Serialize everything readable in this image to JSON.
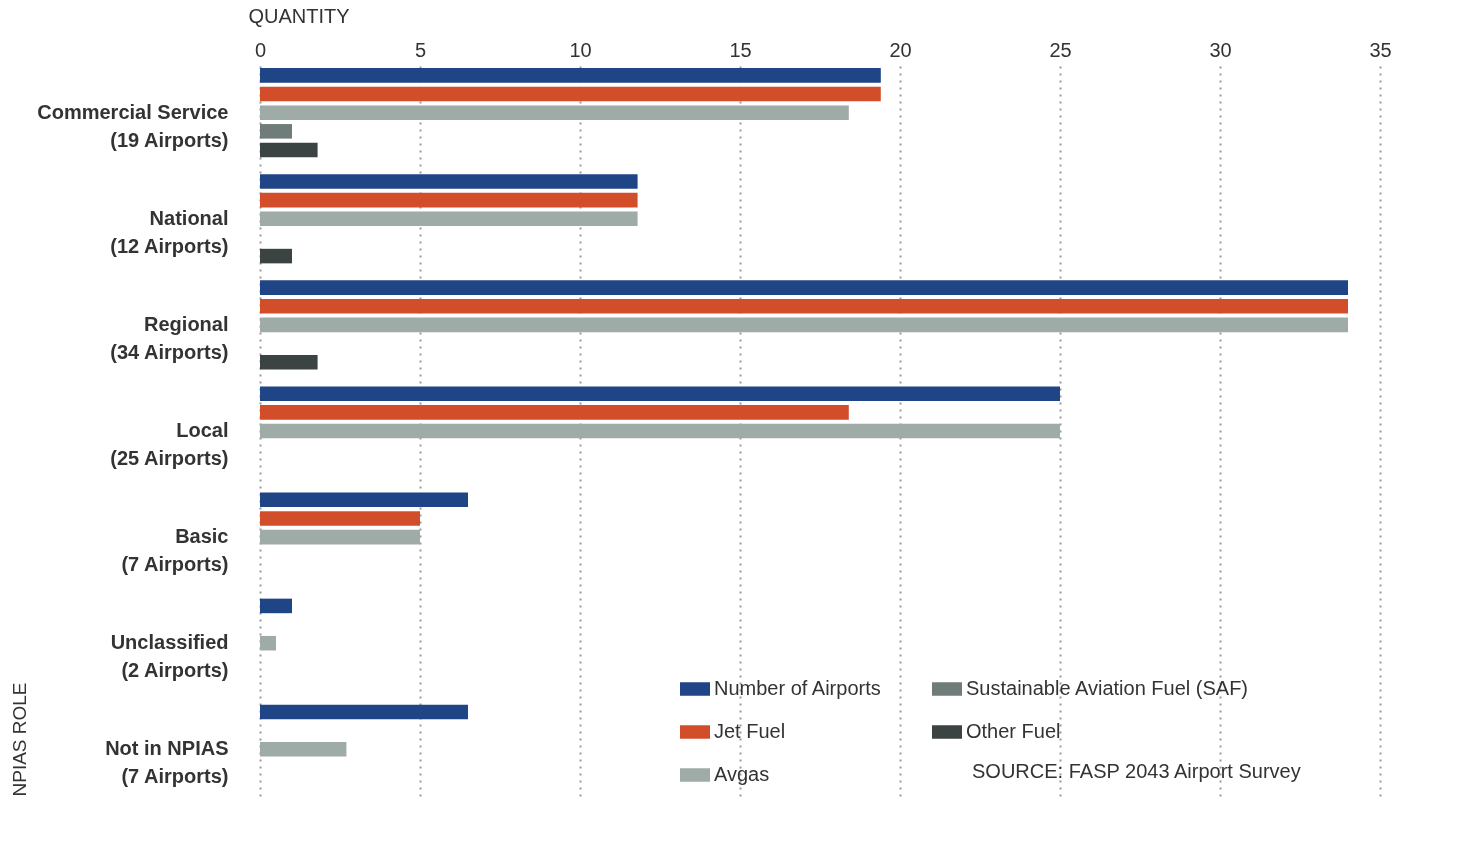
{
  "chart_data": {
    "type": "bar",
    "orientation": "horizontal",
    "xlabel": "QUANTITY",
    "ylabel": "NPIAS ROLE",
    "categories": [
      "Commercial Service (19 Airports)",
      "National (12 Airports)",
      "Regional (34 Airports)",
      "Local (25 Airports)",
      "Basic (7 Airports)",
      "Unclassified (2 Airports)",
      "Not in NPIAS (7 Airports)"
    ],
    "series": [
      {
        "name": "Number of Airports",
        "color": "#1f4587",
        "values": [
          19.4,
          11.8,
          34,
          25,
          6.5,
          1,
          6.5
        ]
      },
      {
        "name": "Jet Fuel",
        "color": "#d24e2b",
        "values": [
          19.4,
          11.8,
          34,
          18.4,
          5,
          null,
          null
        ]
      },
      {
        "name": "Avgas",
        "color": "#9eaba7",
        "values": [
          18.4,
          11.8,
          34,
          25,
          5,
          0.5,
          2.7
        ]
      },
      {
        "name": "Sustainable Aviation Fuel (SAF)",
        "color": "#6f7c7a",
        "values": [
          1,
          null,
          null,
          null,
          null,
          null,
          null
        ]
      },
      {
        "name": "Other Fuel",
        "color": "#3b4343",
        "values": [
          1.8,
          1,
          1.8,
          null,
          null,
          null,
          null
        ]
      }
    ],
    "xlim": [
      0,
      35
    ],
    "xticks": [
      0,
      5,
      10,
      15,
      20,
      25,
      30,
      35
    ],
    "grid": "x",
    "legend": "bottom right",
    "annotations": [
      "SOURCE: FASP 2043 Airport Survey"
    ]
  }
}
